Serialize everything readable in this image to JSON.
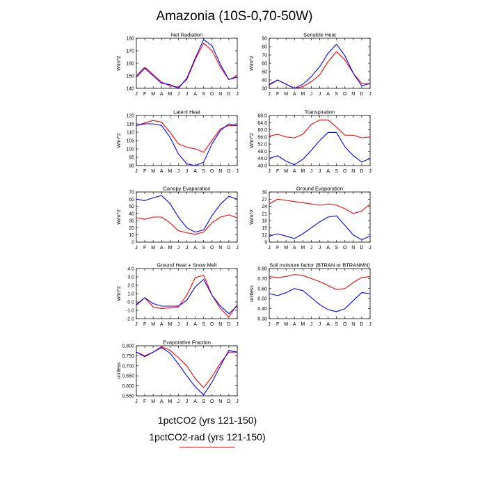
{
  "title": "Amazonia (10S-0,70-50W)",
  "months": [
    "J",
    "F",
    "M",
    "A",
    "M",
    "J",
    "J",
    "A",
    "S",
    "O",
    "N",
    "D",
    "J"
  ],
  "legend": [
    {
      "label": "1pctCO2 (yrs 121-150)",
      "color": "#0000ff"
    },
    {
      "label": "1pctCO2-rad (yrs 121-150)",
      "color": "#ff0000"
    }
  ],
  "chart_data": [
    {
      "type": "line",
      "title": "Net Radiation",
      "ylabel": "W/m^2",
      "ylim": [
        140,
        180
      ],
      "yticks": [
        "140",
        "150",
        "160",
        "170",
        "180"
      ],
      "x": [
        "J",
        "F",
        "M",
        "A",
        "M",
        "J",
        "J",
        "A",
        "S",
        "O",
        "N",
        "D",
        "J"
      ],
      "series": [
        {
          "name": "1pctCO2 (yrs 121-150)",
          "color": "#0000ff",
          "values": [
            149,
            156,
            150,
            144,
            143,
            140,
            148,
            164,
            179,
            174,
            159,
            147,
            149
          ]
        },
        {
          "name": "1pctCO2-rad (yrs 121-150)",
          "color": "#ff0000",
          "values": [
            150,
            157,
            151,
            145,
            142,
            141,
            147,
            163,
            176,
            170,
            157,
            147,
            150
          ]
        }
      ]
    },
    {
      "type": "line",
      "title": "Sensible Heat",
      "ylabel": "W/m^2",
      "ylim": [
        30,
        90
      ],
      "yticks": [
        "30",
        "40",
        "50",
        "60",
        "70",
        "80",
        "90"
      ],
      "x": [
        "J",
        "F",
        "M",
        "A",
        "M",
        "J",
        "J",
        "A",
        "S",
        "O",
        "N",
        "D",
        "J"
      ],
      "series": [
        {
          "name": "1pctCO2 (yrs 121-150)",
          "color": "#0000ff",
          "values": [
            34,
            40,
            35,
            30,
            35,
            44,
            56,
            72,
            83,
            69,
            48,
            33,
            36
          ]
        },
        {
          "name": "1pctCO2-rad (yrs 121-150)",
          "color": "#ff0000",
          "values": [
            35,
            40,
            35,
            30,
            32,
            38,
            46,
            62,
            74,
            64,
            48,
            36,
            35
          ]
        }
      ]
    },
    {
      "type": "line",
      "title": "Latent Heat",
      "ylabel": "W/m^2",
      "ylim": [
        90,
        120
      ],
      "yticks": [
        "90",
        "95",
        "100",
        "105",
        "110",
        "115",
        "120"
      ],
      "x": [
        "J",
        "F",
        "M",
        "A",
        "M",
        "J",
        "J",
        "A",
        "S",
        "O",
        "N",
        "D",
        "J"
      ],
      "series": [
        {
          "name": "1pctCO2 (yrs 121-150)",
          "color": "#0000ff",
          "values": [
            114,
            115,
            115,
            114,
            107,
            97,
            91,
            90,
            92,
            103,
            111,
            115,
            114
          ]
        },
        {
          "name": "1pctCO2-rad (yrs 121-150)",
          "color": "#ff0000",
          "values": [
            114,
            115.5,
            117,
            116,
            110,
            103,
            101,
            100,
            98,
            105,
            112,
            114,
            114
          ]
        }
      ]
    },
    {
      "type": "line",
      "title": "Transpiration",
      "ylabel": "W/m^2",
      "ylim": [
        40,
        68
      ],
      "yticks": [
        "40.0",
        "44.0",
        "48.0",
        "52.0",
        "56.0",
        "60.0",
        "64.0",
        "68.0"
      ],
      "x": [
        "J",
        "F",
        "M",
        "A",
        "M",
        "J",
        "J",
        "A",
        "S",
        "O",
        "N",
        "D",
        "J"
      ],
      "series": [
        {
          "name": "1pctCO2 (yrs 121-150)",
          "color": "#0000ff",
          "values": [
            44,
            45.5,
            42.5,
            40.5,
            43.5,
            48.5,
            54,
            58.5,
            58.5,
            50.5,
            45.5,
            42,
            44
          ]
        },
        {
          "name": "1pctCO2-rad (yrs 121-150)",
          "color": "#ff0000",
          "values": [
            56.5,
            57.5,
            56,
            55.5,
            57.5,
            63,
            65.5,
            65.5,
            61.5,
            57,
            57,
            55.5,
            56
          ]
        }
      ]
    },
    {
      "type": "line",
      "title": "Canopy Evaporation",
      "ylabel": "W/m^2",
      "ylim": [
        0,
        70
      ],
      "yticks": [
        "0",
        "10",
        "20",
        "30",
        "40",
        "50",
        "60",
        "70"
      ],
      "x": [
        "J",
        "F",
        "M",
        "A",
        "M",
        "J",
        "J",
        "A",
        "S",
        "O",
        "N",
        "D",
        "J"
      ],
      "series": [
        {
          "name": "1pctCO2 (yrs 121-150)",
          "color": "#0000ff",
          "values": [
            60,
            58,
            62,
            65,
            54,
            35,
            20,
            14,
            17,
            37,
            53,
            64,
            60
          ]
        },
        {
          "name": "1pctCO2-rad (yrs 121-150)",
          "color": "#ff0000",
          "values": [
            34,
            32,
            35,
            35,
            27,
            16,
            13,
            11,
            14,
            27,
            35,
            38,
            34
          ]
        }
      ]
    },
    {
      "type": "line",
      "title": "Ground Evaporation",
      "ylabel": "W/m^2",
      "ylim": [
        9,
        30
      ],
      "yticks": [
        "9",
        "12",
        "15",
        "18",
        "21",
        "24",
        "27",
        "30"
      ],
      "x": [
        "J",
        "F",
        "M",
        "A",
        "M",
        "J",
        "J",
        "A",
        "S",
        "O",
        "N",
        "D",
        "J"
      ],
      "series": [
        {
          "name": "1pctCO2 (yrs 121-150)",
          "color": "#0000ff",
          "values": [
            11.5,
            12.5,
            11.5,
            10.5,
            12.5,
            15,
            17.5,
            19.5,
            20,
            16,
            12,
            10,
            11.5
          ]
        },
        {
          "name": "1pctCO2-rad (yrs 121-150)",
          "color": "#ff0000",
          "values": [
            25,
            27,
            26.5,
            26,
            25.5,
            25,
            24.5,
            25,
            24.5,
            23,
            21,
            22,
            25
          ]
        }
      ]
    },
    {
      "type": "line",
      "title": "Ground Heat + Snow Melt",
      "ylabel": "W/m^2",
      "ylim": [
        -2,
        4
      ],
      "yticks": [
        "-2.0",
        "-1.0",
        "0.0",
        "1.0",
        "2.0",
        "3.0",
        "4.0"
      ],
      "x": [
        "J",
        "F",
        "M",
        "A",
        "M",
        "J",
        "J",
        "A",
        "S",
        "O",
        "N",
        "D",
        "J"
      ],
      "series": [
        {
          "name": "1pctCO2 (yrs 121-150)",
          "color": "#0000ff",
          "values": [
            -0.3,
            0.5,
            -0.2,
            -0.5,
            -0.5,
            -0.5,
            0.2,
            1.8,
            2.7,
            0.8,
            -0.5,
            -1.4,
            -0.5
          ]
        },
        {
          "name": "1pctCO2-rad (yrs 121-150)",
          "color": "#ff0000",
          "values": [
            -0.4,
            0.5,
            -0.6,
            -0.8,
            -0.7,
            -0.6,
            0.8,
            2.9,
            3.2,
            0.8,
            -0.8,
            -1.8,
            -0.3
          ]
        }
      ]
    },
    {
      "type": "line",
      "title": "Soil moisture factor (BTRAN or BTRANMN)",
      "ylabel": "unitless",
      "ylim": [
        0.3,
        0.8
      ],
      "yticks": [
        "0.30",
        "0.40",
        "0.50",
        "0.60",
        "0.70",
        "0.80"
      ],
      "x": [
        "J",
        "F",
        "M",
        "A",
        "M",
        "J",
        "J",
        "A",
        "S",
        "O",
        "N",
        "D",
        "J"
      ],
      "series": [
        {
          "name": "1pctCO2 (yrs 121-150)",
          "color": "#0000ff",
          "values": [
            0.55,
            0.53,
            0.56,
            0.6,
            0.58,
            0.51,
            0.44,
            0.39,
            0.37,
            0.4,
            0.48,
            0.56,
            0.55
          ]
        },
        {
          "name": "1pctCO2-rad (yrs 121-150)",
          "color": "#ff0000",
          "values": [
            0.72,
            0.71,
            0.72,
            0.74,
            0.73,
            0.7,
            0.67,
            0.63,
            0.59,
            0.6,
            0.66,
            0.71,
            0.72
          ]
        }
      ]
    },
    {
      "type": "line",
      "title": "Evaporative Fraction",
      "ylabel": "unitless",
      "ylim": [
        0.525,
        0.8
      ],
      "yticks": [
        "0.550",
        "0.600",
        "0.650",
        "0.700",
        "0.750",
        "0.800"
      ],
      "x": [
        "J",
        "F",
        "M",
        "A",
        "M",
        "J",
        "J",
        "A",
        "S",
        "O",
        "N",
        "D",
        "J"
      ],
      "series": [
        {
          "name": "1pctCO2 (yrs 121-150)",
          "color": "#0000ff",
          "values": [
            0.765,
            0.74,
            0.765,
            0.79,
            0.76,
            0.7,
            0.635,
            0.575,
            0.53,
            0.6,
            0.69,
            0.775,
            0.765
          ]
        },
        {
          "name": "1pctCO2-rad (yrs 121-150)",
          "color": "#ff0000",
          "values": [
            0.765,
            0.745,
            0.765,
            0.795,
            0.775,
            0.735,
            0.69,
            0.62,
            0.57,
            0.63,
            0.705,
            0.765,
            0.765
          ]
        }
      ]
    }
  ]
}
